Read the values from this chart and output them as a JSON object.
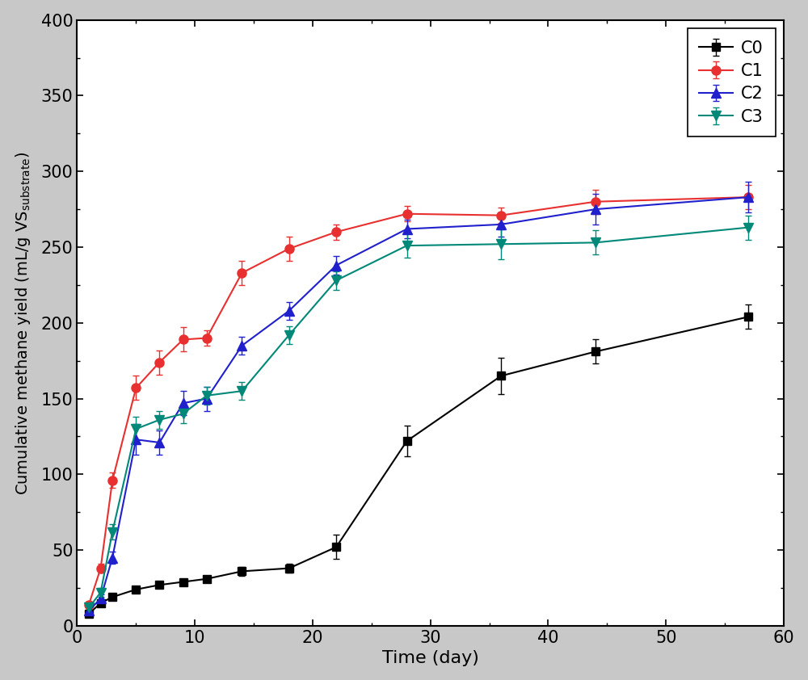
{
  "title": "",
  "xlabel": "Time (day)",
  "xlim": [
    0,
    60
  ],
  "ylim": [
    0,
    400
  ],
  "xticks": [
    0,
    10,
    20,
    30,
    40,
    50,
    60
  ],
  "yticks": [
    0,
    50,
    100,
    150,
    200,
    250,
    300,
    350,
    400
  ],
  "outer_bg": "#c8c8c8",
  "plot_bg": "#ffffff",
  "series": [
    {
      "label": "C0",
      "color": "#000000",
      "marker": "s",
      "marker_size": 7,
      "x": [
        1,
        2,
        3,
        5,
        7,
        9,
        11,
        14,
        18,
        22,
        28,
        36,
        44,
        57
      ],
      "y": [
        8,
        15,
        19,
        24,
        27,
        29,
        31,
        36,
        38,
        52,
        122,
        165,
        181,
        204
      ],
      "yerr": [
        1,
        2,
        2,
        2,
        2,
        2,
        2,
        3,
        3,
        8,
        10,
        12,
        8,
        8
      ]
    },
    {
      "label": "C1",
      "color": "#e83030",
      "marker": "o",
      "marker_size": 8,
      "x": [
        1,
        2,
        3,
        5,
        7,
        9,
        11,
        14,
        18,
        22,
        28,
        36,
        44,
        57
      ],
      "y": [
        14,
        38,
        96,
        157,
        174,
        189,
        190,
        233,
        249,
        260,
        272,
        271,
        280,
        283
      ],
      "yerr": [
        2,
        3,
        5,
        8,
        8,
        8,
        5,
        8,
        8,
        5,
        5,
        5,
        8,
        8
      ]
    },
    {
      "label": "C2",
      "color": "#2020cc",
      "marker": "^",
      "marker_size": 8,
      "x": [
        1,
        2,
        3,
        5,
        7,
        9,
        11,
        14,
        18,
        22,
        28,
        36,
        44,
        57
      ],
      "y": [
        10,
        18,
        45,
        123,
        121,
        147,
        150,
        185,
        208,
        238,
        262,
        265,
        275,
        283
      ],
      "yerr": [
        2,
        3,
        4,
        10,
        8,
        8,
        8,
        6,
        6,
        6,
        6,
        8,
        10,
        10
      ]
    },
    {
      "label": "C3",
      "color": "#008878",
      "marker": "v",
      "marker_size": 8,
      "x": [
        1,
        2,
        3,
        5,
        7,
        9,
        11,
        14,
        18,
        22,
        28,
        36,
        44,
        57
      ],
      "y": [
        12,
        22,
        62,
        130,
        136,
        140,
        152,
        155,
        192,
        228,
        251,
        252,
        253,
        263
      ],
      "yerr": [
        2,
        3,
        5,
        8,
        6,
        6,
        6,
        6,
        6,
        6,
        8,
        10,
        8,
        8
      ]
    }
  ]
}
